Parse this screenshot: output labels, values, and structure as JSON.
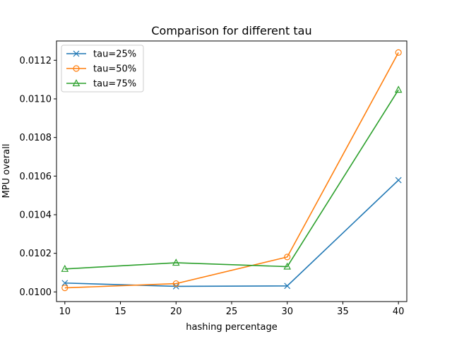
{
  "chart_data": {
    "type": "line",
    "title": "Comparison for different tau",
    "xlabel": "hashing percentage",
    "ylabel": "MPU overall",
    "x": [
      10,
      20,
      30,
      40
    ],
    "xlim": [
      9.25,
      40.75
    ],
    "ylim": [
      0.00995,
      0.0113
    ],
    "x_ticks": [
      10,
      15,
      20,
      25,
      30,
      35,
      40
    ],
    "y_ticks": [
      0.01,
      0.0102,
      0.0104,
      0.0106,
      0.0108,
      0.011,
      0.0112
    ],
    "x_tick_labels": [
      "10",
      "15",
      "20",
      "25",
      "30",
      "35",
      "40"
    ],
    "y_tick_labels": [
      "0.0100",
      "0.0102",
      "0.0104",
      "0.0106",
      "0.0108",
      "0.0110",
      "0.0112"
    ],
    "grid": false,
    "legend_position": "top-left",
    "series": [
      {
        "name": "tau=25%",
        "color": "#1f77b4",
        "marker": "x",
        "values": [
          0.010046,
          0.010029,
          0.010031,
          0.010579
        ]
      },
      {
        "name": "tau=50%",
        "color": "#ff7f0e",
        "marker": "circle",
        "values": [
          0.010021,
          0.010043,
          0.010181,
          0.01124
        ]
      },
      {
        "name": "tau=75%",
        "color": "#2ca02c",
        "marker": "triangle",
        "values": [
          0.010119,
          0.010151,
          0.010131,
          0.011047
        ]
      }
    ]
  }
}
